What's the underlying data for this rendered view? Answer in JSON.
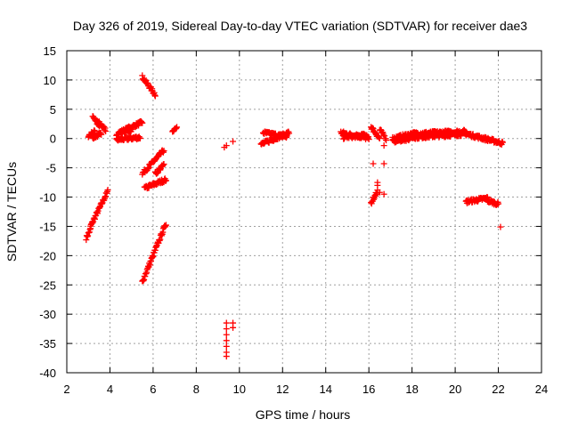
{
  "chart_data": {
    "type": "scatter",
    "title": "Day 326 of 2019, Sidereal Day-to-day VTEC variation (SDTVAR) for receiver dae3",
    "xlabel": "GPS time / hours",
    "ylabel": "SDTVAR / TECUs",
    "xlim": [
      2,
      24
    ],
    "ylim": [
      -40,
      15
    ],
    "xticks": [
      2,
      4,
      6,
      8,
      10,
      12,
      14,
      16,
      18,
      20,
      22,
      24
    ],
    "yticks": [
      -40,
      -35,
      -30,
      -25,
      -20,
      -15,
      -10,
      -5,
      0,
      5,
      10,
      15
    ],
    "grid": true,
    "marker": "+",
    "color": "#ff0000",
    "segments": [
      {
        "x0": 2.9,
        "x1": 3.1,
        "y0": -17,
        "y1": -15.5
      },
      {
        "x0": 3.1,
        "x1": 3.9,
        "y0": -15,
        "y1": -9
      },
      {
        "x0": 3.0,
        "x1": 3.3,
        "y0": 0.5,
        "y1": 1.2
      },
      {
        "x0": 3.2,
        "x1": 3.5,
        "y0": 4,
        "y1": 2
      },
      {
        "x0": 3.4,
        "x1": 3.8,
        "y0": 3,
        "y1": 1.5
      },
      {
        "x0": 3.2,
        "x1": 3.6,
        "y0": 0.2,
        "y1": 0.8
      },
      {
        "x0": 4.3,
        "x1": 5.5,
        "y0": 0.8,
        "y1": 2.8
      },
      {
        "x0": 4.3,
        "x1": 5.4,
        "y0": -0.2,
        "y1": 0.2
      },
      {
        "x0": 4.5,
        "x1": 5.0,
        "y0": 1.0,
        "y1": 1.5
      },
      {
        "x0": 5.5,
        "x1": 6.1,
        "y0": 10.5,
        "y1": 7.5
      },
      {
        "x0": 5.5,
        "x1": 6.5,
        "y0": -6,
        "y1": -2
      },
      {
        "x0": 5.6,
        "x1": 6.6,
        "y0": -8.5,
        "y1": -7
      },
      {
        "x0": 6.1,
        "x1": 6.5,
        "y0": -6,
        "y1": -4.5
      },
      {
        "x0": 5.5,
        "x1": 6.6,
        "y0": -24.5,
        "y1": -14.5
      },
      {
        "x0": 6.9,
        "x1": 7.1,
        "y0": 1.2,
        "y1": 2.2
      },
      {
        "x0": 11.0,
        "x1": 12.3,
        "y0": -1,
        "y1": 1
      },
      {
        "x0": 11.1,
        "x1": 12.2,
        "y0": 1,
        "y1": 0.3
      },
      {
        "x0": 14.7,
        "x1": 16.0,
        "y0": 1,
        "y1": 0
      },
      {
        "x0": 14.8,
        "x1": 15.9,
        "y0": 0.2,
        "y1": 0.6
      },
      {
        "x0": 16.1,
        "x1": 16.5,
        "y0": 2,
        "y1": 0
      },
      {
        "x0": 16.5,
        "x1": 16.8,
        "y0": 1.5,
        "y1": 0
      },
      {
        "x0": 17.1,
        "x1": 18.0,
        "y0": 0,
        "y1": 0.8
      },
      {
        "x0": 17.1,
        "x1": 17.9,
        "y0": -0.5,
        "y1": 0
      },
      {
        "x0": 18.0,
        "x1": 20.5,
        "y0": 0.8,
        "y1": 1.2
      },
      {
        "x0": 18.0,
        "x1": 20.5,
        "y0": 0.2,
        "y1": 0.8
      },
      {
        "x0": 20.5,
        "x1": 22.2,
        "y0": 0.8,
        "y1": -0.8
      },
      {
        "x0": 20.5,
        "x1": 21.0,
        "y0": -10.8,
        "y1": -10.5
      },
      {
        "x0": 21.0,
        "x1": 21.5,
        "y0": -10.5,
        "y1": -10.2
      },
      {
        "x0": 21.5,
        "x1": 22.0,
        "y0": -10.6,
        "y1": -11.2
      },
      {
        "x0": 16.1,
        "x1": 16.4,
        "y0": -11,
        "y1": -9
      }
    ],
    "points": [
      [
        9.3,
        -1.5
      ],
      [
        9.4,
        -1.2
      ],
      [
        9.7,
        -0.5
      ],
      [
        9.4,
        -31.5
      ],
      [
        9.4,
        -32.5
      ],
      [
        9.4,
        -33.5
      ],
      [
        9.4,
        -34.5
      ],
      [
        9.4,
        -35.5
      ],
      [
        9.4,
        -36.5
      ],
      [
        9.4,
        -37.2
      ],
      [
        9.7,
        -31.5
      ],
      [
        9.7,
        -32.3
      ],
      [
        16.2,
        -4.3
      ],
      [
        16.4,
        -7.5
      ],
      [
        16.4,
        -8.0
      ],
      [
        16.7,
        -4.3
      ],
      [
        16.7,
        -9.5
      ],
      [
        16.7,
        -1.2
      ],
      [
        16.5,
        -9.2
      ],
      [
        16.3,
        -9.8
      ],
      [
        22.1,
        -15.1
      ]
    ]
  }
}
